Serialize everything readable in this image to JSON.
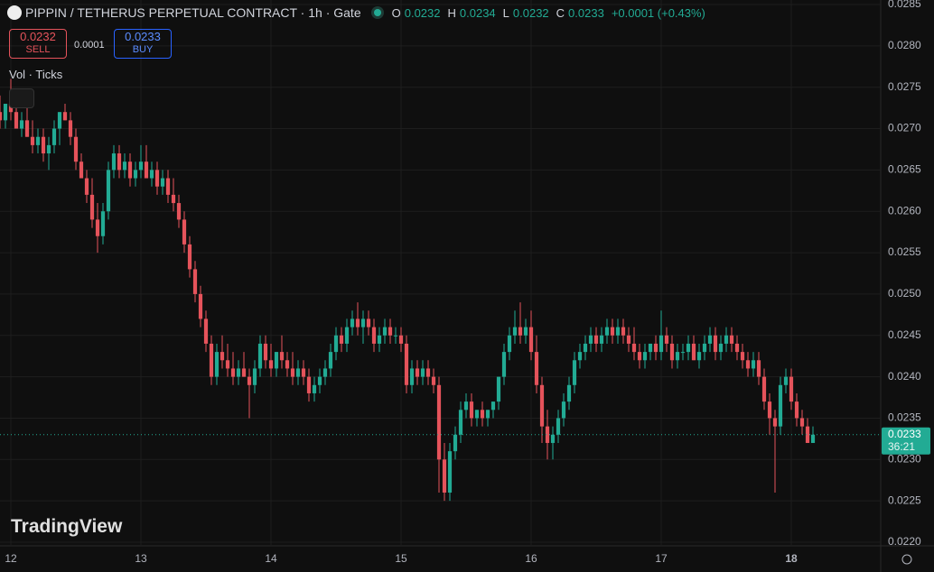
{
  "chart_data": {
    "type": "candlestick",
    "title": "PIPPIN / TETHERUS PERPETUAL CONTRACT · 1h · Gate",
    "ohlc_header": {
      "o_label": "O",
      "o": 0.0232,
      "h_label": "H",
      "h": 0.0234,
      "l_label": "L",
      "l": 0.0232,
      "c_label": "C",
      "c": 0.0233,
      "change": "+0.0001 (+0.43%)"
    },
    "sell": {
      "price": 0.0232,
      "label": "SELL"
    },
    "spread": 0.0001,
    "buy": {
      "price": 0.0233,
      "label": "BUY"
    },
    "indicator_label": "Vol · Ticks",
    "watermark": "TradingView",
    "last_price": 0.0233,
    "countdown": "36:21",
    "up_color": "#22ab94",
    "down_color": "#e5535b",
    "grid": true,
    "ylim": [
      0.022,
      0.0285
    ],
    "yticks": [
      {
        "value": 0.022,
        "label": "0.0220"
      },
      0.0225,
      {
        "value": 0.023,
        "label": "0.0230"
      },
      0.0235,
      {
        "value": 0.024,
        "label": "0.0240"
      },
      0.0245,
      {
        "value": 0.025,
        "label": "0.0250"
      },
      0.0255,
      {
        "value": 0.026,
        "label": "0.0260"
      },
      0.0265,
      {
        "value": 0.027,
        "label": "0.0270"
      },
      0.0275,
      {
        "value": 0.028,
        "label": "0.0280"
      },
      0.0285
    ],
    "xlim": [
      -2,
      160.5
    ],
    "xticks": [
      {
        "value": 0,
        "label": "12"
      },
      {
        "value": 24,
        "label": "13"
      },
      {
        "value": 48,
        "label": "14"
      },
      {
        "value": 72,
        "label": "15"
      },
      {
        "value": 96,
        "label": "16"
      },
      {
        "value": 120,
        "label": "17"
      },
      {
        "value": 144,
        "label": "18"
      }
    ],
    "candles": [
      [
        -2,
        0.0272,
        0.0274,
        0.027,
        0.0271
      ],
      [
        -1,
        0.0271,
        0.0273,
        0.027,
        0.0273
      ],
      [
        0,
        0.0273,
        0.0276,
        0.0271,
        0.0272
      ],
      [
        1,
        0.0272,
        0.0274,
        0.027,
        0.027
      ],
      [
        2,
        0.027,
        0.0272,
        0.0269,
        0.0271
      ],
      [
        3,
        0.0271,
        0.0273,
        0.0269,
        0.0269
      ],
      [
        4,
        0.0269,
        0.0271,
        0.0267,
        0.0268
      ],
      [
        5,
        0.0268,
        0.027,
        0.0267,
        0.0269
      ],
      [
        6,
        0.0269,
        0.027,
        0.0266,
        0.0267
      ],
      [
        7,
        0.0267,
        0.0269,
        0.0265,
        0.0268
      ],
      [
        8,
        0.0268,
        0.0271,
        0.0267,
        0.027
      ],
      [
        9,
        0.027,
        0.0272,
        0.0268,
        0.0272
      ],
      [
        10,
        0.0272,
        0.0273,
        0.0271,
        0.0271
      ],
      [
        11,
        0.0271,
        0.0272,
        0.0268,
        0.0269
      ],
      [
        12,
        0.0269,
        0.027,
        0.0265,
        0.0266
      ],
      [
        13,
        0.0266,
        0.0267,
        0.0264,
        0.0264
      ],
      [
        14,
        0.0264,
        0.0265,
        0.0261,
        0.0262
      ],
      [
        15,
        0.0262,
        0.0264,
        0.0258,
        0.0259
      ],
      [
        16,
        0.0259,
        0.0261,
        0.0255,
        0.0257
      ],
      [
        17,
        0.0257,
        0.0261,
        0.0256,
        0.026
      ],
      [
        18,
        0.026,
        0.0266,
        0.0259,
        0.0265
      ],
      [
        19,
        0.0265,
        0.0268,
        0.0264,
        0.0267
      ],
      [
        20,
        0.0267,
        0.0268,
        0.0264,
        0.0265
      ],
      [
        21,
        0.0265,
        0.0267,
        0.0264,
        0.0266
      ],
      [
        22,
        0.0266,
        0.0267,
        0.0263,
        0.0264
      ],
      [
        23,
        0.0264,
        0.0266,
        0.0263,
        0.0265
      ],
      [
        24,
        0.0265,
        0.0268,
        0.0264,
        0.0266
      ],
      [
        25,
        0.0266,
        0.0268,
        0.0264,
        0.0264
      ],
      [
        26,
        0.0264,
        0.0266,
        0.0263,
        0.0265
      ],
      [
        27,
        0.0265,
        0.0266,
        0.0262,
        0.0263
      ],
      [
        28,
        0.0263,
        0.0265,
        0.0262,
        0.0264
      ],
      [
        29,
        0.0264,
        0.0265,
        0.0261,
        0.0262
      ],
      [
        30,
        0.0262,
        0.0264,
        0.026,
        0.0261
      ],
      [
        31,
        0.0261,
        0.0262,
        0.0258,
        0.0259
      ],
      [
        32,
        0.0259,
        0.026,
        0.0255,
        0.0256
      ],
      [
        33,
        0.0256,
        0.0257,
        0.0252,
        0.0253
      ],
      [
        34,
        0.0253,
        0.0254,
        0.0249,
        0.025
      ],
      [
        35,
        0.025,
        0.0251,
        0.0246,
        0.0247
      ],
      [
        36,
        0.0247,
        0.0248,
        0.0243,
        0.0244
      ],
      [
        37,
        0.0244,
        0.0245,
        0.0239,
        0.024
      ],
      [
        38,
        0.024,
        0.0244,
        0.0239,
        0.0243
      ],
      [
        39,
        0.0243,
        0.0245,
        0.0241,
        0.0242
      ],
      [
        40,
        0.0242,
        0.0244,
        0.024,
        0.0241
      ],
      [
        41,
        0.0241,
        0.0243,
        0.0239,
        0.024
      ],
      [
        42,
        0.024,
        0.0242,
        0.0239,
        0.0241
      ],
      [
        43,
        0.0241,
        0.0243,
        0.024,
        0.024
      ],
      [
        44,
        0.024,
        0.0241,
        0.0235,
        0.0239
      ],
      [
        45,
        0.0239,
        0.0242,
        0.0238,
        0.0241
      ],
      [
        46,
        0.0241,
        0.0245,
        0.024,
        0.0244
      ],
      [
        47,
        0.0244,
        0.0245,
        0.0241,
        0.0242
      ],
      [
        48,
        0.0242,
        0.0244,
        0.024,
        0.0241
      ],
      [
        49,
        0.0241,
        0.0243,
        0.024,
        0.0243
      ],
      [
        50,
        0.0243,
        0.0245,
        0.0241,
        0.0242
      ],
      [
        51,
        0.0242,
        0.0243,
        0.024,
        0.0241
      ],
      [
        52,
        0.0241,
        0.0243,
        0.0239,
        0.024
      ],
      [
        53,
        0.024,
        0.0242,
        0.0239,
        0.0241
      ],
      [
        54,
        0.0241,
        0.0242,
        0.0239,
        0.024
      ],
      [
        55,
        0.024,
        0.0241,
        0.0237,
        0.0238
      ],
      [
        56,
        0.0238,
        0.024,
        0.0237,
        0.0239
      ],
      [
        57,
        0.0239,
        0.0241,
        0.0238,
        0.024
      ],
      [
        58,
        0.024,
        0.0242,
        0.0239,
        0.0241
      ],
      [
        59,
        0.0241,
        0.0244,
        0.024,
        0.0243
      ],
      [
        60,
        0.0243,
        0.0246,
        0.0242,
        0.0245
      ],
      [
        61,
        0.0245,
        0.0246,
        0.0243,
        0.0244
      ],
      [
        62,
        0.0244,
        0.0247,
        0.0243,
        0.0246
      ],
      [
        63,
        0.0246,
        0.0248,
        0.0245,
        0.0247
      ],
      [
        64,
        0.0247,
        0.0249,
        0.0245,
        0.0246
      ],
      [
        65,
        0.0246,
        0.0248,
        0.0244,
        0.0247
      ],
      [
        66,
        0.0247,
        0.0248,
        0.0245,
        0.0246
      ],
      [
        67,
        0.0246,
        0.0247,
        0.0243,
        0.0244
      ],
      [
        68,
        0.0244,
        0.0246,
        0.0243,
        0.0245
      ],
      [
        69,
        0.0245,
        0.0247,
        0.0244,
        0.0246
      ],
      [
        70,
        0.0246,
        0.0247,
        0.0244,
        0.0245
      ],
      [
        71,
        0.0245,
        0.0246,
        0.0244,
        0.0245
      ],
      [
        72,
        0.0245,
        0.0246,
        0.0243,
        0.0244
      ],
      [
        73,
        0.0244,
        0.0245,
        0.0238,
        0.0239
      ],
      [
        74,
        0.0239,
        0.0242,
        0.0238,
        0.0241
      ],
      [
        75,
        0.0241,
        0.0242,
        0.0239,
        0.024
      ],
      [
        76,
        0.024,
        0.0242,
        0.0239,
        0.0241
      ],
      [
        77,
        0.0241,
        0.0242,
        0.0239,
        0.024
      ],
      [
        78,
        0.024,
        0.0241,
        0.0238,
        0.0239
      ],
      [
        79,
        0.0239,
        0.024,
        0.0226,
        0.023
      ],
      [
        80,
        0.023,
        0.0232,
        0.0225,
        0.0226
      ],
      [
        81,
        0.0226,
        0.0232,
        0.0225,
        0.0231
      ],
      [
        82,
        0.0231,
        0.0234,
        0.023,
        0.0233
      ],
      [
        83,
        0.0233,
        0.0237,
        0.0232,
        0.0236
      ],
      [
        84,
        0.0236,
        0.0238,
        0.0235,
        0.0237
      ],
      [
        85,
        0.0237,
        0.0238,
        0.0234,
        0.0235
      ],
      [
        86,
        0.0235,
        0.0236,
        0.0234,
        0.0236
      ],
      [
        87,
        0.0236,
        0.0237,
        0.0234,
        0.0235
      ],
      [
        88,
        0.0235,
        0.0236,
        0.0234,
        0.0236
      ],
      [
        89,
        0.0236,
        0.0237,
        0.0235,
        0.0237
      ],
      [
        90,
        0.0237,
        0.024,
        0.0236,
        0.024
      ],
      [
        91,
        0.024,
        0.0244,
        0.0239,
        0.0243
      ],
      [
        92,
        0.0243,
        0.0246,
        0.0242,
        0.0245
      ],
      [
        93,
        0.0245,
        0.0248,
        0.0244,
        0.0246
      ],
      [
        94,
        0.0246,
        0.0249,
        0.0244,
        0.0245
      ],
      [
        95,
        0.0245,
        0.0247,
        0.0244,
        0.0246
      ],
      [
        96,
        0.0246,
        0.0248,
        0.0242,
        0.0243
      ],
      [
        97,
        0.0243,
        0.0245,
        0.0238,
        0.0239
      ],
      [
        98,
        0.0239,
        0.024,
        0.0232,
        0.0234
      ],
      [
        99,
        0.0234,
        0.0236,
        0.023,
        0.0232
      ],
      [
        100,
        0.0232,
        0.0234,
        0.023,
        0.0233
      ],
      [
        101,
        0.0233,
        0.0236,
        0.0232,
        0.0235
      ],
      [
        102,
        0.0235,
        0.0238,
        0.0234,
        0.0237
      ],
      [
        103,
        0.0237,
        0.024,
        0.0236,
        0.0239
      ],
      [
        104,
        0.0239,
        0.0243,
        0.0238,
        0.0242
      ],
      [
        105,
        0.0242,
        0.0244,
        0.0241,
        0.0243
      ],
      [
        106,
        0.0243,
        0.0245,
        0.0242,
        0.0244
      ],
      [
        107,
        0.0244,
        0.0246,
        0.0243,
        0.0245
      ],
      [
        108,
        0.0245,
        0.0246,
        0.0243,
        0.0244
      ],
      [
        109,
        0.0244,
        0.0246,
        0.0243,
        0.0245
      ],
      [
        110,
        0.0245,
        0.0247,
        0.0244,
        0.0246
      ],
      [
        111,
        0.0246,
        0.0247,
        0.0244,
        0.0245
      ],
      [
        112,
        0.0245,
        0.0247,
        0.0244,
        0.0246
      ],
      [
        113,
        0.0246,
        0.0247,
        0.0244,
        0.0245
      ],
      [
        114,
        0.0245,
        0.0246,
        0.0243,
        0.0244
      ],
      [
        115,
        0.0244,
        0.0246,
        0.0242,
        0.0243
      ],
      [
        116,
        0.0243,
        0.0244,
        0.0241,
        0.0242
      ],
      [
        117,
        0.0242,
        0.0244,
        0.0241,
        0.0243
      ],
      [
        118,
        0.0243,
        0.0244,
        0.0242,
        0.0244
      ],
      [
        119,
        0.0244,
        0.0245,
        0.0242,
        0.0243
      ],
      [
        120,
        0.0243,
        0.0248,
        0.0242,
        0.0245
      ],
      [
        121,
        0.0245,
        0.0246,
        0.0243,
        0.0244
      ],
      [
        122,
        0.0244,
        0.0245,
        0.0241,
        0.0242
      ],
      [
        123,
        0.0242,
        0.0244,
        0.0241,
        0.0243
      ],
      [
        124,
        0.0243,
        0.0244,
        0.0242,
        0.0243
      ],
      [
        125,
        0.0243,
        0.0245,
        0.0242,
        0.0244
      ],
      [
        126,
        0.0244,
        0.0245,
        0.0242,
        0.0242
      ],
      [
        127,
        0.0242,
        0.0244,
        0.0241,
        0.0243
      ],
      [
        128,
        0.0243,
        0.0245,
        0.0242,
        0.0244
      ],
      [
        129,
        0.0244,
        0.0246,
        0.0243,
        0.0245
      ],
      [
        130,
        0.0245,
        0.0246,
        0.0242,
        0.0243
      ],
      [
        131,
        0.0243,
        0.0245,
        0.0242,
        0.0244
      ],
      [
        132,
        0.0244,
        0.0246,
        0.0243,
        0.0245
      ],
      [
        133,
        0.0245,
        0.0246,
        0.0243,
        0.0244
      ],
      [
        134,
        0.0244,
        0.0245,
        0.0242,
        0.0243
      ],
      [
        135,
        0.0243,
        0.0244,
        0.0241,
        0.0242
      ],
      [
        136,
        0.0242,
        0.0243,
        0.024,
        0.0241
      ],
      [
        137,
        0.0241,
        0.0243,
        0.024,
        0.0242
      ],
      [
        138,
        0.0242,
        0.0243,
        0.0239,
        0.024
      ],
      [
        139,
        0.024,
        0.0241,
        0.0236,
        0.0237
      ],
      [
        140,
        0.0237,
        0.0238,
        0.0233,
        0.0235
      ],
      [
        141,
        0.0235,
        0.0236,
        0.0226,
        0.0234
      ],
      [
        142,
        0.0234,
        0.024,
        0.0233,
        0.0239
      ],
      [
        143,
        0.0239,
        0.0241,
        0.0238,
        0.024
      ],
      [
        144,
        0.024,
        0.0241,
        0.0236,
        0.0237
      ],
      [
        145,
        0.0237,
        0.0238,
        0.0234,
        0.0235
      ],
      [
        146,
        0.0235,
        0.0236,
        0.0233,
        0.0234
      ],
      [
        147,
        0.0234,
        0.0235,
        0.0232,
        0.0232
      ],
      [
        148,
        0.0232,
        0.0234,
        0.0232,
        0.0233
      ]
    ]
  }
}
